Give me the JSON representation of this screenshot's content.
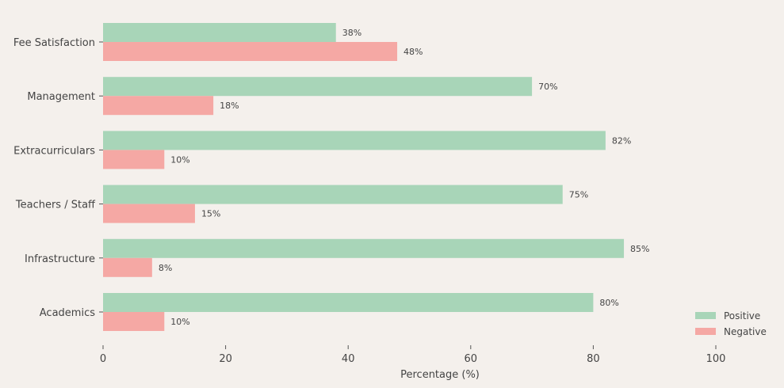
{
  "chart_data": {
    "type": "bar",
    "orientation": "horizontal",
    "categories": [
      "Fee Satisfaction",
      "Management",
      "Extracurriculars",
      "Teachers / Staff",
      "Infrastructure",
      "Academics"
    ],
    "series": [
      {
        "name": "Positive",
        "values": [
          38,
          70,
          82,
          75,
          85,
          80
        ],
        "color": "#a8d5b8"
      },
      {
        "name": "Negative",
        "values": [
          48,
          18,
          10,
          15,
          8,
          10
        ],
        "color": "#f5a8a4"
      }
    ],
    "value_labels": {
      "Positive": [
        "38%",
        "70%",
        "82%",
        "75%",
        "85%",
        "80%"
      ],
      "Negative": [
        "48%",
        "18%",
        "10%",
        "15%",
        "8%",
        "10%"
      ]
    },
    "xlabel": "Percentage (%)",
    "ylabel": "",
    "title": "",
    "xlim": [
      0,
      110
    ],
    "xticks": [
      "0",
      "20",
      "40",
      "60",
      "80",
      "100"
    ],
    "grid": false,
    "legend_position": "lower-right"
  },
  "colors": {
    "background": "#f4f0ec",
    "text": "#444444",
    "tick": "#555555"
  }
}
